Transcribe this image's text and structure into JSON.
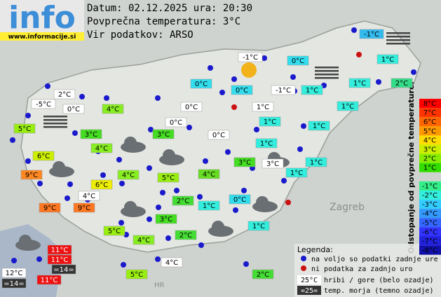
{
  "header": {
    "logo": "info",
    "site": "www.informacije.si",
    "lines": [
      "Datum: 02.12.2025 ura: 20:30",
      "Povprečna temperatura: 3°C",
      "Vir podatkov: ARSO"
    ]
  },
  "map_labels": [
    "Zagreb",
    "HR"
  ],
  "stations": [
    {
      "text": "-1°C",
      "color": "#33bbee"
    },
    {
      "text": "-1°C",
      "color": "#ffffff"
    },
    {
      "text": "0°C",
      "color": "#33ddee"
    },
    {
      "text": "1°C",
      "color": "#33eedd"
    },
    {
      "text": "0°C",
      "color": "#33ddee"
    },
    {
      "text": "0°C",
      "color": "#33ddee"
    },
    {
      "text": "-1°C",
      "color": "#ffffff"
    },
    {
      "text": "1°C",
      "color": "#33eedd"
    },
    {
      "text": "1°C",
      "color": "#33eedd"
    },
    {
      "text": "2°C",
      "color": "#33dd88"
    },
    {
      "text": "2°C",
      "color": "#ffffff"
    },
    {
      "text": "-5°C",
      "color": "#ffffff"
    },
    {
      "text": "0°C",
      "color": "#ffffff"
    },
    {
      "text": "4°C",
      "color": "#88ee22"
    },
    {
      "text": "0°C",
      "color": "#ffffff"
    },
    {
      "text": "1°C",
      "color": "#ffffff"
    },
    {
      "text": "1°C",
      "color": "#33eedd"
    },
    {
      "text": "5°C",
      "color": "#99ee11"
    },
    {
      "text": "1°C",
      "color": "#33eedd"
    },
    {
      "text": "0°C",
      "color": "#ffffff"
    },
    {
      "text": "1°C",
      "color": "#33eedd"
    },
    {
      "text": "3°C",
      "color": "#44dd22"
    },
    {
      "text": "3°C",
      "color": "#44dd22"
    },
    {
      "text": "0°C",
      "color": "#ffffff"
    },
    {
      "text": "4°C",
      "color": "#88ee22"
    },
    {
      "text": "1°C",
      "color": "#33eedd"
    },
    {
      "text": "6°C",
      "color": "#ccee00"
    },
    {
      "text": "3°C",
      "color": "#44dd22"
    },
    {
      "text": "3°C",
      "color": "#ffffff"
    },
    {
      "text": "1°C",
      "color": "#33eedd"
    },
    {
      "text": "1°C",
      "color": "#33eedd"
    },
    {
      "text": "9°C",
      "color": "#ff8822"
    },
    {
      "text": "4°C",
      "color": "#88ee22"
    },
    {
      "text": "5°C",
      "color": "#99ee11"
    },
    {
      "text": "4°C",
      "color": "#66dd22"
    },
    {
      "text": "6°C",
      "color": "#eeee00"
    },
    {
      "text": "4°C",
      "color": "#ffffff"
    },
    {
      "text": "0°C",
      "color": "#33ddee"
    },
    {
      "text": "2°C",
      "color": "#44dd33"
    },
    {
      "text": "1°C",
      "color": "#33eedd"
    },
    {
      "text": "9°C",
      "color": "#ff7722"
    },
    {
      "text": "9°C",
      "color": "#ff7722"
    },
    {
      "text": "3°C",
      "color": "#44dd22"
    },
    {
      "text": "1°C",
      "color": "#33eedd"
    },
    {
      "text": "5°C",
      "color": "#99ee11"
    },
    {
      "text": "4°C",
      "color": "#88ee22"
    },
    {
      "text": "2°C",
      "color": "#44dd33"
    },
    {
      "text": "11°C",
      "color": "#ee1111"
    },
    {
      "text": "11°C",
      "color": "#ee1111"
    },
    {
      "text": "=14=",
      "color": "#333333"
    },
    {
      "text": "12°C",
      "color": "#ffffff"
    },
    {
      "text": "=14=",
      "color": "#333333"
    },
    {
      "text": "11°C",
      "color": "#ee1111"
    },
    {
      "text": "4°C",
      "color": "#ffffff"
    },
    {
      "text": "5°C",
      "color": "#99ee11"
    },
    {
      "text": "2°C",
      "color": "#44dd33"
    }
  ],
  "scale": {
    "title": "Odstopanje od povprečne temperature:",
    "steps": [
      {
        "label": "8°C",
        "color": "#ff0000"
      },
      {
        "label": "7°C",
        "color": "#ff3300"
      },
      {
        "label": "6°C",
        "color": "#ff6600"
      },
      {
        "label": "5°C",
        "color": "#ff9900"
      },
      {
        "label": "4°C",
        "color": "#ffdd00"
      },
      {
        "label": "3°C",
        "color": "#ccee00"
      },
      {
        "label": "2°C",
        "color": "#88ee00"
      },
      {
        "label": "1°C",
        "color": "#33dd00"
      },
      {
        "label": "-1°C",
        "color": "#33ee88"
      },
      {
        "label": "-2°C",
        "color": "#33eedd"
      },
      {
        "label": "-3°C",
        "color": "#33ccff"
      },
      {
        "label": "-4°C",
        "color": "#3399ff"
      },
      {
        "label": "-5°C",
        "color": "#3366ff"
      },
      {
        "label": "-6°C",
        "color": "#3333ff"
      },
      {
        "label": "-7°C",
        "color": "#2222dd"
      },
      {
        "label": "-8°C",
        "color": "#1111aa"
      }
    ]
  },
  "legend": {
    "title": "Legenda:",
    "items": [
      "na voljo so podatki zadnje ure",
      "ni podatka za zadnjo uro"
    ],
    "hill_sample": "25°C",
    "hill_text": "hribi / gore (belo ozadje)",
    "sea_sample": "=25=",
    "sea_text": "temp. morja (temno ozadje)"
  }
}
